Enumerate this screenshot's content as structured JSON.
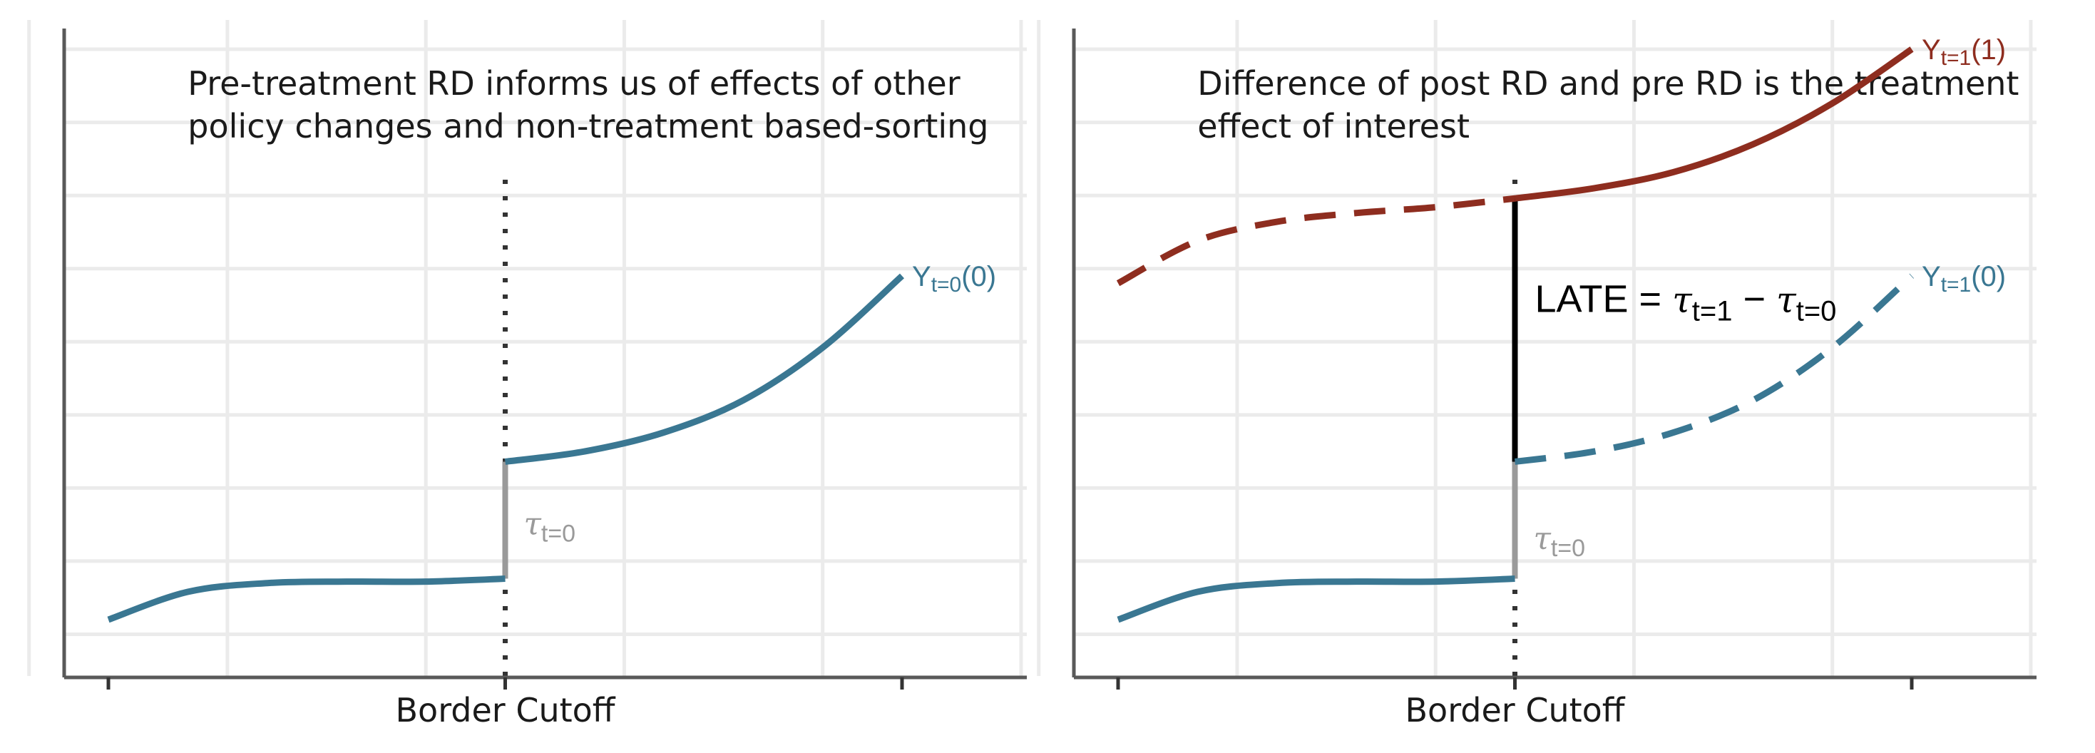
{
  "colors": {
    "blue": "#3a7792",
    "red": "#8e2d1f",
    "gray": "#9a9a9a",
    "black": "#000000",
    "grid": "#ebebeb"
  },
  "chart_data": [
    {
      "type": "line",
      "title_lines": [
        "Pre-treatment RD informs us of effects of other",
        "policy changes and non-treatment based-sorting"
      ],
      "xlabel": "Border Cutoff",
      "ylabel": "",
      "xlim": [
        -1,
        1
      ],
      "ylim": [
        0.1,
        4.4
      ],
      "cutoff_x": 0,
      "grid": true,
      "series": [
        {
          "id": "y_t0_0_left",
          "color": "blue",
          "dashed": false,
          "x": [
            -1,
            -0.8,
            -0.6,
            -0.4,
            -0.2,
            0
          ],
          "y": [
            0.3,
            0.49,
            0.55,
            0.56,
            0.56,
            0.58
          ]
        },
        {
          "id": "y_t0_0_right",
          "color": "blue",
          "dashed": false,
          "x": [
            0,
            0.2,
            0.4,
            0.6,
            0.8,
            1
          ],
          "y": [
            1.38,
            1.45,
            1.58,
            1.8,
            2.16,
            2.65
          ]
        }
      ],
      "jumps": [
        {
          "id": "tau_t0",
          "color": "gray",
          "x": 0,
          "y_from": 0.58,
          "y_to": 1.38
        }
      ],
      "labels": [
        {
          "id": "y_t0_0",
          "kind": "Y",
          "main": "Y",
          "sub": "t=0",
          "suffix": "(0)",
          "color": "blue",
          "x": 1,
          "y": 2.65
        },
        {
          "id": "tau_t0",
          "kind": "tau",
          "main": "τ",
          "sub": "t=0",
          "color": "gray",
          "x": 0,
          "y": 0.97
        }
      ]
    },
    {
      "type": "line",
      "title_lines": [
        "Difference of post RD and pre RD is the treatment",
        "effect of interest"
      ],
      "xlabel": "Border Cutoff",
      "ylabel": "",
      "xlim": [
        -1,
        1
      ],
      "ylim": [
        0.1,
        4.4
      ],
      "cutoff_x": 0,
      "grid": true,
      "series": [
        {
          "id": "y_t1_1_counterfactual",
          "color": "red",
          "dashed": true,
          "x": [
            -1,
            -0.8,
            -0.6,
            -0.4,
            -0.2,
            0
          ],
          "y": [
            2.6,
            2.89,
            3.02,
            3.08,
            3.12,
            3.18
          ]
        },
        {
          "id": "y_t1_1",
          "color": "red",
          "dashed": false,
          "x": [
            0,
            0.2,
            0.4,
            0.6,
            0.8,
            1
          ],
          "y": [
            3.18,
            3.25,
            3.36,
            3.55,
            3.83,
            4.2
          ]
        },
        {
          "id": "y_t1_0_left",
          "color": "blue",
          "dashed": false,
          "x": [
            -1,
            -0.8,
            -0.6,
            -0.4,
            -0.2,
            0
          ],
          "y": [
            0.3,
            0.49,
            0.55,
            0.56,
            0.56,
            0.58
          ]
        },
        {
          "id": "y_t1_0_counterfactual",
          "color": "blue",
          "dashed": true,
          "x": [
            0,
            0.2,
            0.4,
            0.6,
            0.8,
            1
          ],
          "y": [
            1.38,
            1.45,
            1.58,
            1.8,
            2.16,
            2.65
          ]
        }
      ],
      "jumps": [
        {
          "id": "tau_t0",
          "color": "gray",
          "x": 0,
          "y_from": 0.58,
          "y_to": 1.38
        },
        {
          "id": "late",
          "color": "black",
          "x": 0,
          "y_from": 1.38,
          "y_to": 3.18
        }
      ],
      "labels": [
        {
          "id": "y_t1_1",
          "kind": "Y",
          "main": "Y",
          "sub": "t=1",
          "suffix": "(1)",
          "color": "red",
          "x": 1,
          "y": 4.2
        },
        {
          "id": "y_t1_0",
          "kind": "Y",
          "main": "Y",
          "sub": "t=1",
          "suffix": "(0)",
          "color": "blue",
          "x": 1,
          "y": 2.65
        },
        {
          "id": "tau_t0",
          "kind": "tau",
          "main": "τ",
          "sub": "t=0",
          "color": "gray",
          "x": 0,
          "y": 0.87
        },
        {
          "id": "late",
          "kind": "late",
          "main": "LATE = ",
          "parts": [
            "τ",
            "t=1",
            " − ",
            "τ",
            "t=0"
          ],
          "color": "black",
          "x": 0,
          "y": 2.5
        }
      ]
    }
  ]
}
